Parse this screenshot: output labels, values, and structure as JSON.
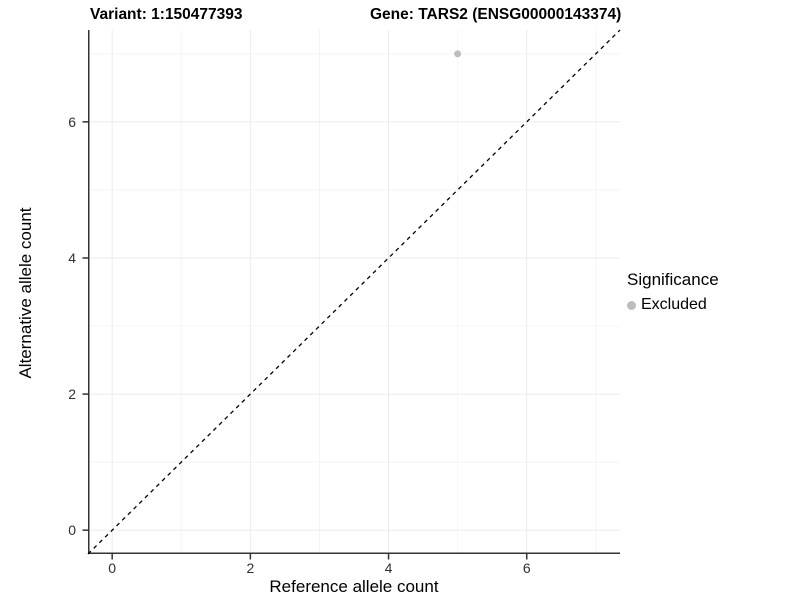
{
  "titles": {
    "variant": "Variant: 1:150477393",
    "gene": "Gene: TARS2 (ENSG00000143374)"
  },
  "axes": {
    "x": {
      "label": "Reference allele count"
    },
    "y": {
      "label": "Alternative allele count"
    }
  },
  "legend": {
    "title": "Significance",
    "items": [
      {
        "label": "Excluded",
        "color": "#bdbdbd"
      }
    ]
  },
  "colors": {
    "major_grid": "#ebebeb",
    "minor_grid": "#f4f4f4",
    "axis_line": "#333333",
    "tick_mark": "#333333",
    "reference_line": "#000000",
    "point": "#bdbdbd"
  },
  "chart_data": {
    "type": "scatter",
    "title": "Variant: 1:150477393  |  Gene: TARS2 (ENSG00000143374)",
    "xlabel": "Reference allele count",
    "ylabel": "Alternative allele count",
    "xlim": [
      -0.35,
      7.35
    ],
    "ylim": [
      -0.35,
      7.35
    ],
    "x_ticks": [
      0,
      2,
      4,
      6
    ],
    "y_ticks": [
      0,
      2,
      4,
      6
    ],
    "x_minor_ticks": [
      1,
      3,
      5,
      7
    ],
    "y_minor_ticks": [
      1,
      3,
      5,
      7
    ],
    "grid": true,
    "legend_position": "right",
    "series": [
      {
        "name": "Excluded",
        "color": "#bdbdbd",
        "points": [
          {
            "x": 5,
            "y": 7
          }
        ]
      }
    ],
    "reference_line": {
      "type": "identity",
      "style": "dashed",
      "from": [
        -0.35,
        -0.35
      ],
      "to": [
        7.35,
        7.35
      ]
    }
  }
}
